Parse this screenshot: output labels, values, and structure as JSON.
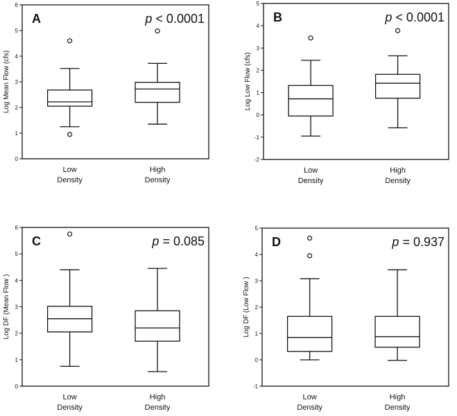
{
  "chart_data": [
    {
      "type": "box",
      "panel_label": "A",
      "p_text": "< 0.0001",
      "ylabel": "Log Mean Flow (cfs)",
      "ylim": [
        0,
        6
      ],
      "yticks": [
        "0",
        "1",
        "2",
        "3",
        "4",
        "5",
        "6"
      ],
      "categories": [
        "Low\nDensity",
        "High\nDensity"
      ],
      "boxes": [
        {
          "whisker_low": 1.25,
          "q1": 2.05,
          "median": 2.22,
          "q3": 2.68,
          "whisker_high": 3.52,
          "outliers": [
            4.6,
            0.95
          ]
        },
        {
          "whisker_low": 1.35,
          "q1": 2.2,
          "median": 2.72,
          "q3": 2.98,
          "whisker_high": 3.72,
          "outliers": [
            4.98
          ]
        }
      ]
    },
    {
      "type": "box",
      "panel_label": "B",
      "p_text": "< 0.0001",
      "ylabel": "Log Low Flow (cfs)",
      "ylim": [
        -2,
        5
      ],
      "yticks": [
        "-2",
        "-1",
        "0",
        "1",
        "2",
        "3",
        "4",
        "5"
      ],
      "categories": [
        "Low\nDensity",
        "High\nDensity"
      ],
      "boxes": [
        {
          "whisker_low": -0.95,
          "q1": -0.05,
          "median": 0.72,
          "q3": 1.32,
          "whisker_high": 2.45,
          "outliers": [
            3.45
          ]
        },
        {
          "whisker_low": -0.58,
          "q1": 0.75,
          "median": 1.42,
          "q3": 1.82,
          "whisker_high": 2.65,
          "outliers": [
            3.78
          ]
        }
      ]
    },
    {
      "type": "box",
      "panel_label": "C",
      "p_text": "= 0.085",
      "ylabel": "Log DF (Mean Flow )",
      "ylim": [
        0,
        6
      ],
      "yticks": [
        "0",
        "1",
        "2",
        "3",
        "4",
        "5",
        "6"
      ],
      "categories": [
        "Low\nDensity",
        "High\nDensity"
      ],
      "boxes": [
        {
          "whisker_low": 0.75,
          "q1": 2.05,
          "median": 2.55,
          "q3": 3.02,
          "whisker_high": 4.4,
          "outliers": [
            5.75
          ]
        },
        {
          "whisker_low": 0.55,
          "q1": 1.7,
          "median": 2.2,
          "q3": 2.85,
          "whisker_high": 4.45,
          "outliers": []
        }
      ]
    },
    {
      "type": "box",
      "panel_label": "D",
      "p_text": "= 0.937",
      "ylabel": "Log DF (Low Flow )",
      "ylim": [
        -1,
        5
      ],
      "yticks": [
        "-1",
        "0",
        "1",
        "2",
        "3",
        "4",
        "5"
      ],
      "categories": [
        "Low\nDensity",
        "High\nDensity"
      ],
      "boxes": [
        {
          "whisker_low": 0.0,
          "q1": 0.32,
          "median": 0.85,
          "q3": 1.65,
          "whisker_high": 3.08,
          "outliers": [
            4.62,
            3.95
          ]
        },
        {
          "whisker_low": -0.02,
          "q1": 0.48,
          "median": 0.88,
          "q3": 1.65,
          "whisker_high": 3.42,
          "outliers": []
        }
      ]
    }
  ]
}
